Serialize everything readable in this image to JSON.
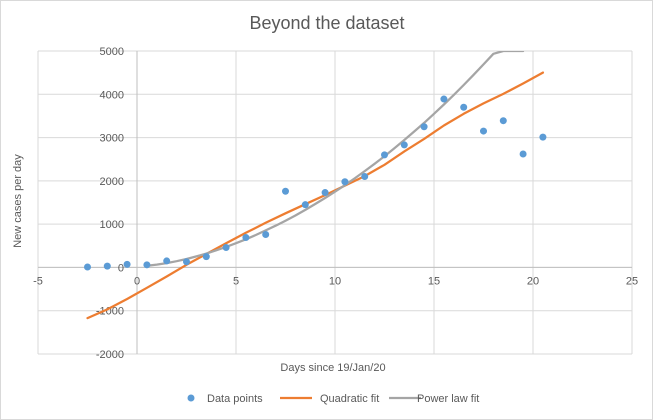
{
  "chart_data": {
    "type": "scatter",
    "title": "Beyond the dataset",
    "xlabel": "Days since 19/Jan/20",
    "ylabel": "New cases per day",
    "xlim": [
      -5,
      25
    ],
    "ylim": [
      -2000,
      5000
    ],
    "x_ticks": [
      -5,
      0,
      5,
      10,
      15,
      20,
      25
    ],
    "y_ticks": [
      -2000,
      -1000,
      0,
      1000,
      2000,
      3000,
      4000,
      5000
    ],
    "grid": {
      "horizontal": true,
      "vertical": true
    },
    "legend_position": "bottom",
    "series": [
      {
        "name": "Data points",
        "kind": "scatter",
        "color": "#5b9bd5",
        "x": [
          -2.5,
          -1.5,
          -0.5,
          0.5,
          1.5,
          2.5,
          3.5,
          4.5,
          5.5,
          6.5,
          7.5,
          8.5,
          9.5,
          10.5,
          11.5,
          12.5,
          13.5,
          14.5,
          15.5,
          16.5,
          17.5,
          18.5,
          19.5,
          20.5
        ],
        "y": [
          10,
          30,
          70,
          60,
          150,
          130,
          250,
          460,
          690,
          760,
          1760,
          1450,
          1730,
          1980,
          2100,
          2600,
          2830,
          3250,
          3890,
          3700,
          3150,
          3390,
          2620,
          3010
        ]
      },
      {
        "name": "Quadratic fit",
        "kind": "line",
        "color": "#ed7d31",
        "x": [
          -2.5,
          -1.5,
          -0.5,
          0.5,
          1.5,
          2.5,
          3.5,
          4.5,
          5.5,
          6.5,
          7.5,
          8.5,
          9.5,
          10.5,
          11.5,
          12.5,
          13.5,
          14.5,
          15.5,
          16.5,
          17.5,
          18.5,
          19.5,
          20.5
        ],
        "y": [
          -1170,
          -970,
          -730,
          -470,
          -210,
          60,
          310,
          560,
          800,
          1030,
          1250,
          1460,
          1670,
          1890,
          2110,
          2370,
          2680,
          2970,
          3280,
          3550,
          3790,
          4010,
          4250,
          4500
        ]
      },
      {
        "name": "Power law fit",
        "kind": "line",
        "color": "#a5a5a5",
        "x": [
          0.5,
          1.0,
          1.5,
          2.0,
          2.5,
          3.0,
          3.5,
          4.0,
          4.5,
          5.0,
          5.5,
          6.0,
          6.5,
          7.0,
          7.5,
          8.0,
          8.5,
          9.0,
          9.5,
          10.0,
          10.5,
          11.0,
          11.5,
          12.0,
          12.5,
          13.0,
          13.5,
          14.0,
          14.5,
          15.0,
          15.5,
          16.0,
          16.5,
          17.0,
          17.5,
          18.0,
          18.5,
          19.0,
          19.5
        ],
        "y": [
          40,
          65,
          100,
          145,
          195,
          255,
          320,
          395,
          475,
          560,
          650,
          750,
          855,
          965,
          1080,
          1200,
          1330,
          1465,
          1605,
          1750,
          1900,
          2060,
          2225,
          2395,
          2570,
          2755,
          2945,
          3140,
          3340,
          3550,
          3765,
          3985,
          4215,
          4450,
          4690,
          4935,
          5000,
          5000,
          5000
        ]
      }
    ]
  }
}
